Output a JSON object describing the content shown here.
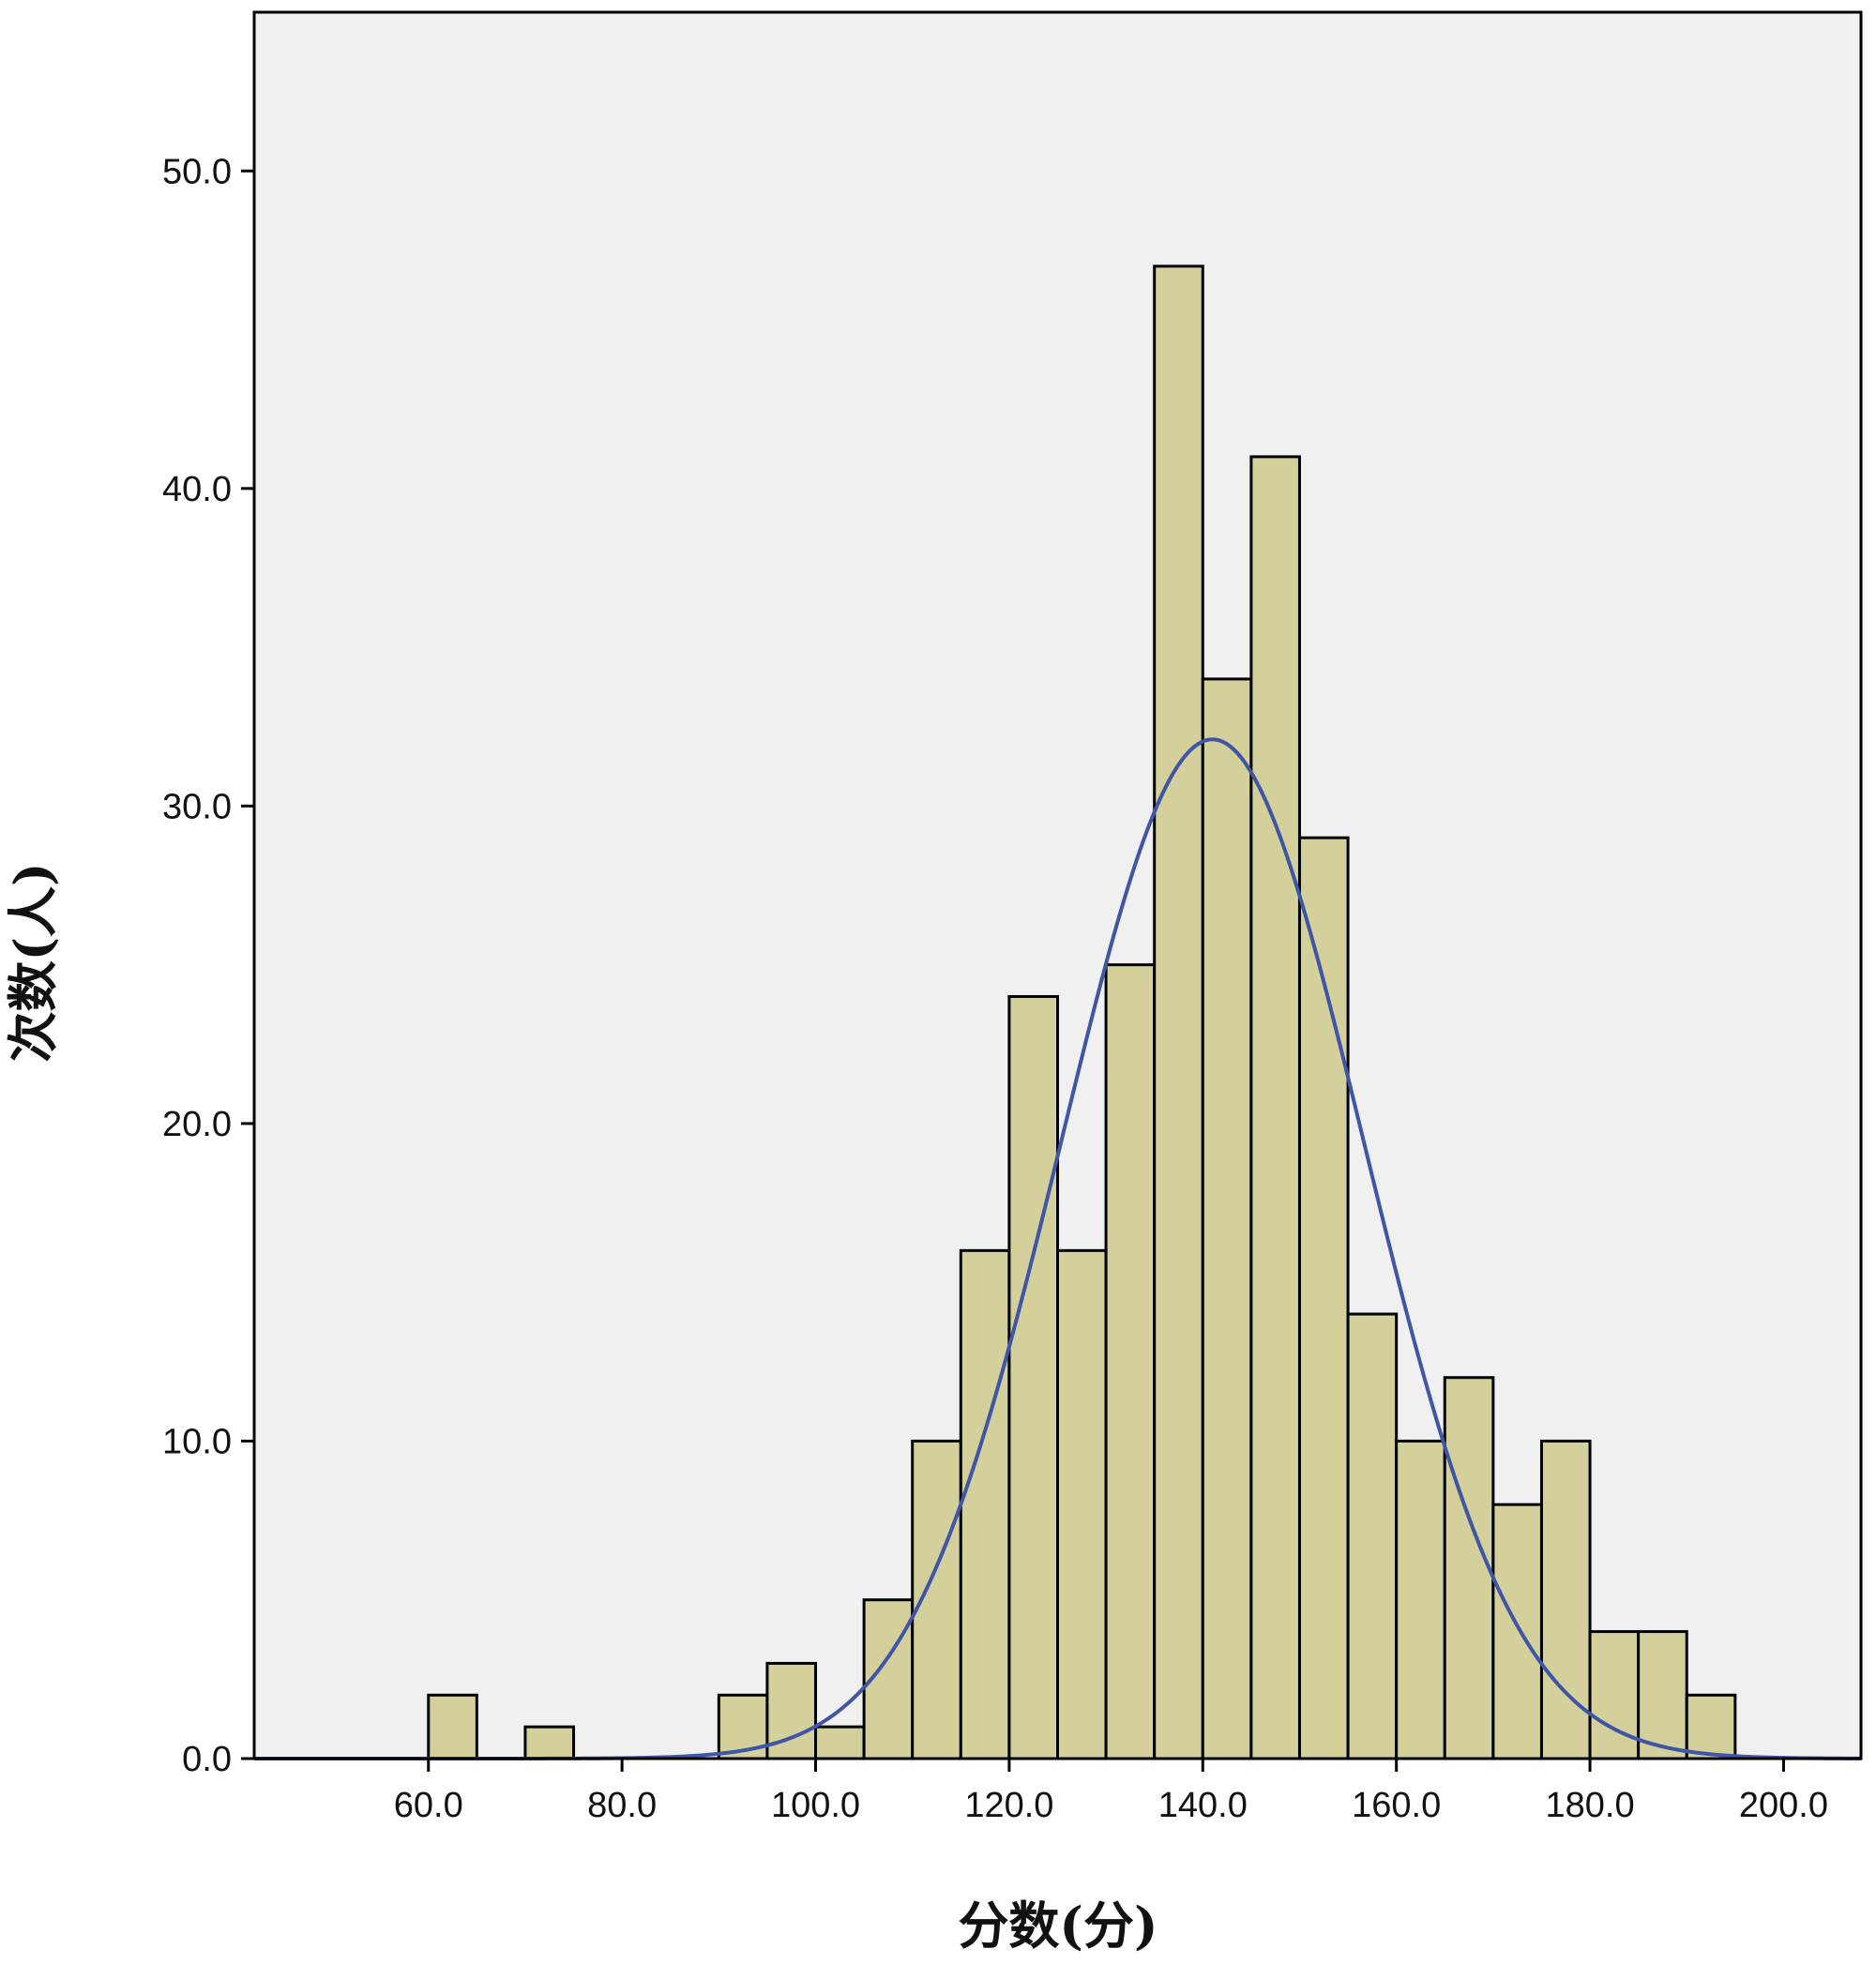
{
  "chart_data": {
    "type": "bar",
    "subtype": "histogram-with-normal-curve",
    "xlabel": "分数(分)",
    "ylabel": "次数(人)",
    "xlim": [
      42,
      208
    ],
    "ylim": [
      0,
      55
    ],
    "x_ticks": [
      "60.0",
      "80.0",
      "100.0",
      "120.0",
      "140.0",
      "160.0",
      "180.0",
      "200.0"
    ],
    "x_tick_values": [
      60,
      80,
      100,
      120,
      140,
      160,
      180,
      200
    ],
    "y_ticks": [
      "0.0",
      "10.0",
      "20.0",
      "30.0",
      "40.0",
      "50.0"
    ],
    "y_tick_values": [
      0,
      10,
      20,
      30,
      40,
      50
    ],
    "bin_width": 5,
    "bins": [
      {
        "start": 60,
        "count": 2
      },
      {
        "start": 70,
        "count": 1
      },
      {
        "start": 90,
        "count": 2
      },
      {
        "start": 95,
        "count": 3
      },
      {
        "start": 100,
        "count": 1
      },
      {
        "start": 105,
        "count": 5
      },
      {
        "start": 110,
        "count": 10
      },
      {
        "start": 115,
        "count": 16
      },
      {
        "start": 120,
        "count": 24
      },
      {
        "start": 125,
        "count": 16
      },
      {
        "start": 130,
        "count": 25
      },
      {
        "start": 135,
        "count": 47
      },
      {
        "start": 140,
        "count": 34
      },
      {
        "start": 145,
        "count": 41
      },
      {
        "start": 150,
        "count": 29
      },
      {
        "start": 155,
        "count": 14
      },
      {
        "start": 160,
        "count": 10
      },
      {
        "start": 165,
        "count": 12
      },
      {
        "start": 170,
        "count": 8
      },
      {
        "start": 175,
        "count": 10
      },
      {
        "start": 180,
        "count": 4
      },
      {
        "start": 185,
        "count": 4
      },
      {
        "start": 190,
        "count": 2
      }
    ],
    "normal_curve": {
      "mean": 141,
      "sd": 15.6,
      "peak": 32.1
    },
    "grid": false,
    "colors": {
      "bar_fill": "#d3d09c",
      "bar_stroke": "#000000",
      "plot_background": "#f0f0f0",
      "curve": "#3f55a5"
    }
  }
}
